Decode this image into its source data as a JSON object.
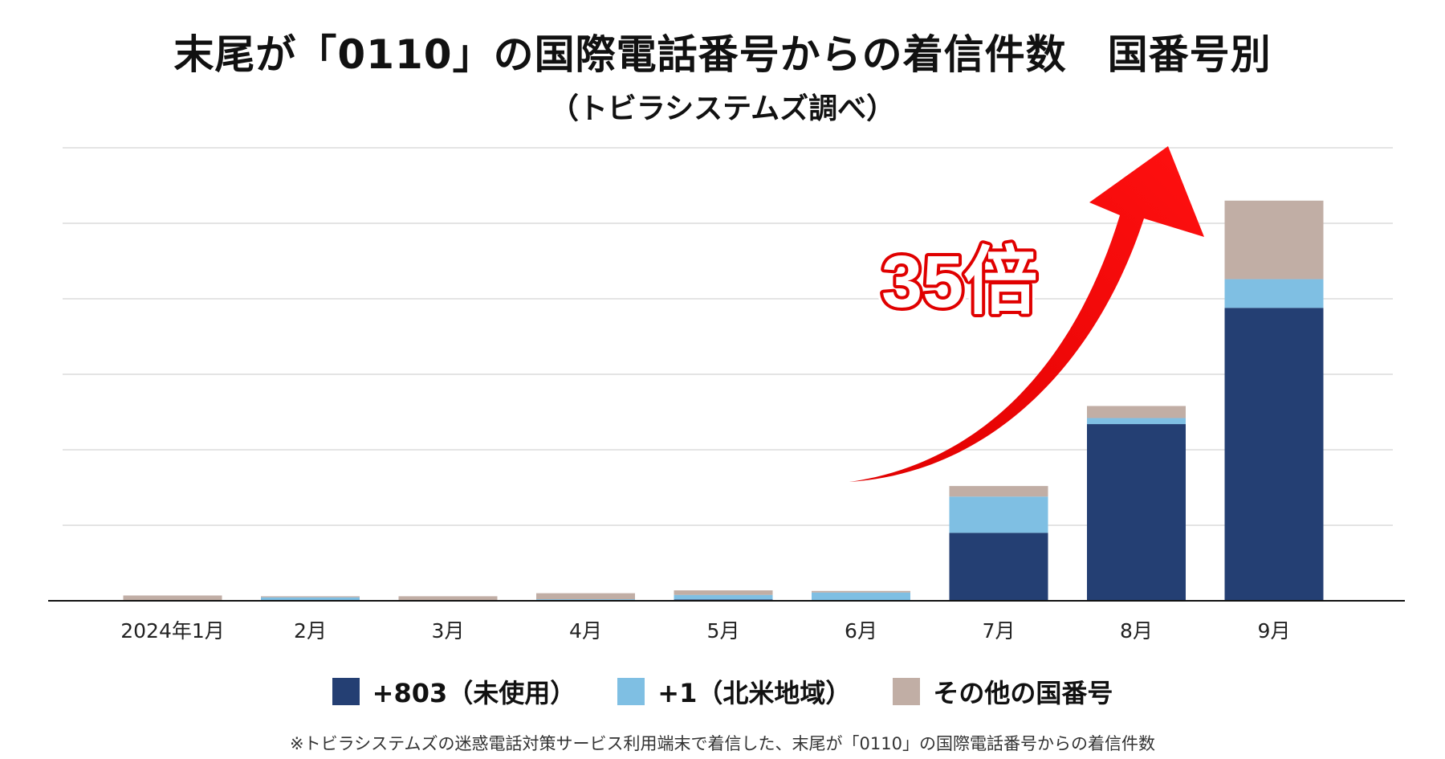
{
  "chart_data": {
    "type": "bar",
    "stacked": true,
    "title": "末尾が「0110」の国際電話番号からの着信件数　国番号別",
    "subtitle": "（トビラシステムズ調べ）",
    "categories": [
      "2024年1月",
      "2月",
      "3月",
      "4月",
      "5月",
      "6月",
      "7月",
      "8月",
      "9月"
    ],
    "series": [
      {
        "name": "+803（未使用）",
        "color": "#243f73",
        "values": [
          0,
          0.3,
          0,
          0.5,
          0.9,
          0.5,
          45,
          117,
          194
        ]
      },
      {
        "name": "+1（北米地域）",
        "color": "#7fbfe3",
        "values": [
          0,
          2,
          0.5,
          0.5,
          3,
          5,
          24,
          4,
          19
        ]
      },
      {
        "name": "その他の国番号",
        "color": "#c1aea5",
        "values": [
          3.5,
          0.7,
          2.5,
          4,
          3,
          1,
          7,
          8,
          52
        ]
      }
    ],
    "ylim": [
      0,
      300
    ],
    "yticks": [
      0,
      50,
      100,
      150,
      200,
      250,
      300
    ],
    "grid": true,
    "show_y_tick_labels": false,
    "xlabel": "",
    "ylabel": "",
    "annotation": {
      "text": "35倍",
      "from_category": "7月",
      "to_category": "9月"
    },
    "legend_position": "bottom"
  },
  "footnote": "※トビラシステムズの迷惑電話対策サービス利用端末で着信した、末尾が「0110」の国際電話番号からの着信件数"
}
